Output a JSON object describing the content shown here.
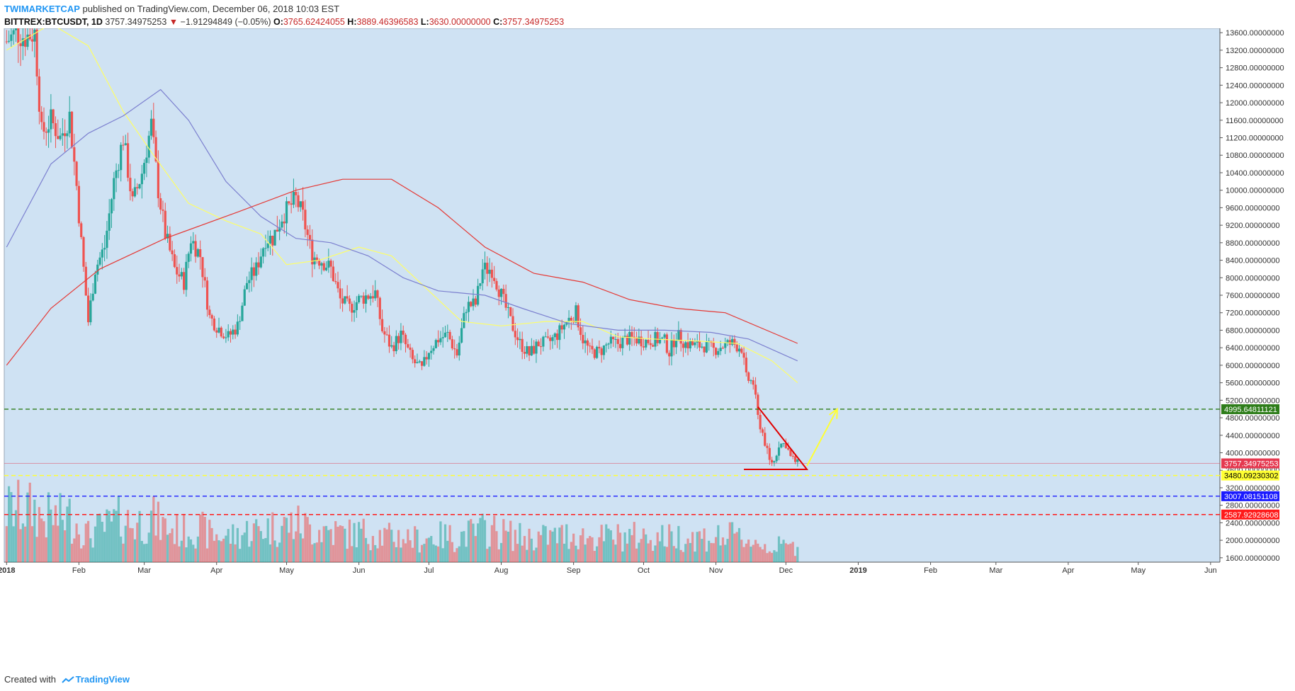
{
  "header": {
    "author": "TWIMARKETCAP",
    "published_text": "published on TradingView.com, December 06, 2018 10:03 EST",
    "symbol": "BITTREX:BTCUSDT, 1D",
    "last": "3757.34975253",
    "change_arrow": "▼",
    "change": "−1.91294849 (−0.05%)",
    "o_label": "O:",
    "o_value": "3765.62424055",
    "h_label": "H:",
    "h_value": "3889.46396583",
    "l_label": "L:",
    "l_value": "3630.00000000",
    "c_label": "C:",
    "c_value": "3757.34975253"
  },
  "footer": {
    "created_with": "Created with",
    "brand": "TradingView"
  },
  "chart_data": {
    "type": "candlestick",
    "background_color": "#cfe2f3",
    "ylim": [
      1500,
      13700
    ],
    "y_ticks": [
      "13600.00000000",
      "13200.00000000",
      "12800.00000000",
      "12400.00000000",
      "12000.00000000",
      "11600.00000000",
      "11200.00000000",
      "10800.00000000",
      "10400.00000000",
      "10000.00000000",
      "9600.00000000",
      "9200.00000000",
      "8800.00000000",
      "8400.00000000",
      "8000.00000000",
      "7600.00000000",
      "7200.00000000",
      "6800.00000000",
      "6400.00000000",
      "6000.00000000",
      "5600.00000000",
      "5200.00000000",
      "4800.00000000",
      "4400.00000000",
      "4000.00000000",
      "3600.00000000",
      "3200.00000000",
      "2800.00000000",
      "2400.00000000",
      "2000.00000000",
      "1600.00000000"
    ],
    "x_ticks": [
      {
        "label": "2018",
        "date": "2018-01-01"
      },
      {
        "label": "Feb",
        "date": "2018-02-01"
      },
      {
        "label": "Mar",
        "date": "2018-03-01"
      },
      {
        "label": "Apr",
        "date": "2018-04-01"
      },
      {
        "label": "May",
        "date": "2018-05-01"
      },
      {
        "label": "Jun",
        "date": "2018-06-01"
      },
      {
        "label": "Jul",
        "date": "2018-07-01"
      },
      {
        "label": "Aug",
        "date": "2018-08-01"
      },
      {
        "label": "Sep",
        "date": "2018-09-01"
      },
      {
        "label": "Oct",
        "date": "2018-10-01"
      },
      {
        "label": "Nov",
        "date": "2018-11-01"
      },
      {
        "label": "Dec",
        "date": "2018-12-01"
      },
      {
        "label": "2019",
        "date": "2019-01-01"
      },
      {
        "label": "Feb",
        "date": "2019-02-01"
      },
      {
        "label": "Mar",
        "date": "2019-03-01"
      },
      {
        "label": "Apr",
        "date": "2019-04-01"
      },
      {
        "label": "May",
        "date": "2019-05-01"
      },
      {
        "label": "Jun",
        "date": "2019-06-01"
      }
    ],
    "up_color": "#26a69a",
    "down_color": "#ef5350",
    "close_path": [
      [
        "2018-01-01",
        13400
      ],
      [
        "2018-01-05",
        13600
      ],
      [
        "2018-01-09",
        13500
      ],
      [
        "2018-01-13",
        13600
      ],
      [
        "2018-01-16",
        11300
      ],
      [
        "2018-01-20",
        11600
      ],
      [
        "2018-01-24",
        11200
      ],
      [
        "2018-01-28",
        11700
      ],
      [
        "2018-01-31",
        10100
      ],
      [
        "2018-02-02",
        8800
      ],
      [
        "2018-02-05",
        7000
      ],
      [
        "2018-02-08",
        8200
      ],
      [
        "2018-02-12",
        8700
      ],
      [
        "2018-02-16",
        10200
      ],
      [
        "2018-02-20",
        11200
      ],
      [
        "2018-02-24",
        9700
      ],
      [
        "2018-02-28",
        10400
      ],
      [
        "2018-03-04",
        11500
      ],
      [
        "2018-03-07",
        10000
      ],
      [
        "2018-03-10",
        9000
      ],
      [
        "2018-03-14",
        8200
      ],
      [
        "2018-03-18",
        7900
      ],
      [
        "2018-03-21",
        8900
      ],
      [
        "2018-03-25",
        8500
      ],
      [
        "2018-03-29",
        7100
      ],
      [
        "2018-04-01",
        6900
      ],
      [
        "2018-04-06",
        6650
      ],
      [
        "2018-04-10",
        6900
      ],
      [
        "2018-04-14",
        7900
      ],
      [
        "2018-04-18",
        8200
      ],
      [
        "2018-04-22",
        8900
      ],
      [
        "2018-04-25",
        8900
      ],
      [
        "2018-04-29",
        9400
      ],
      [
        "2018-05-05",
        9800
      ],
      [
        "2018-05-08",
        9400
      ],
      [
        "2018-05-12",
        8500
      ],
      [
        "2018-05-16",
        8400
      ],
      [
        "2018-05-20",
        8200
      ],
      [
        "2018-05-24",
        7500
      ],
      [
        "2018-05-28",
        7300
      ],
      [
        "2018-06-01",
        7500
      ],
      [
        "2018-06-05",
        7600
      ],
      [
        "2018-06-08",
        7650
      ],
      [
        "2018-06-11",
        6800
      ],
      [
        "2018-06-15",
        6400
      ],
      [
        "2018-06-19",
        6700
      ],
      [
        "2018-06-24",
        6100
      ],
      [
        "2018-06-28",
        5900
      ],
      [
        "2018-07-01",
        6350
      ],
      [
        "2018-07-05",
        6600
      ],
      [
        "2018-07-09",
        6700
      ],
      [
        "2018-07-13",
        6250
      ],
      [
        "2018-07-17",
        7350
      ],
      [
        "2018-07-21",
        7400
      ],
      [
        "2018-07-24",
        8200
      ],
      [
        "2018-07-28",
        8200
      ],
      [
        "2018-08-01",
        7600
      ],
      [
        "2018-08-05",
        7000
      ],
      [
        "2018-08-09",
        6500
      ],
      [
        "2018-08-13",
        6250
      ],
      [
        "2018-08-17",
        6500
      ],
      [
        "2018-08-21",
        6500
      ],
      [
        "2018-08-25",
        6700
      ],
      [
        "2018-08-29",
        7000
      ],
      [
        "2018-09-02",
        7200
      ],
      [
        "2018-09-05",
        6600
      ],
      [
        "2018-09-08",
        6300
      ],
      [
        "2018-09-12",
        6300
      ],
      [
        "2018-09-16",
        6500
      ],
      [
        "2018-09-20",
        6500
      ],
      [
        "2018-09-24",
        6600
      ],
      [
        "2018-09-28",
        6600
      ],
      [
        "2018-10-02",
        6550
      ],
      [
        "2018-10-06",
        6600
      ],
      [
        "2018-10-10",
        6550
      ],
      [
        "2018-10-12",
        6300
      ],
      [
        "2018-10-15",
        6700
      ],
      [
        "2018-10-19",
        6500
      ],
      [
        "2018-10-23",
        6450
      ],
      [
        "2018-10-27",
        6450
      ],
      [
        "2018-10-31",
        6350
      ],
      [
        "2018-11-04",
        6450
      ],
      [
        "2018-11-08",
        6500
      ],
      [
        "2018-11-12",
        6400
      ],
      [
        "2018-11-14",
        5700
      ],
      [
        "2018-11-17",
        5600
      ],
      [
        "2018-11-19",
        4800
      ],
      [
        "2018-11-21",
        4450
      ],
      [
        "2018-11-24",
        3800
      ],
      [
        "2018-11-26",
        3800
      ],
      [
        "2018-11-28",
        4200
      ],
      [
        "2018-12-01",
        4200
      ],
      [
        "2018-12-03",
        3900
      ],
      [
        "2018-12-06",
        3757
      ]
    ],
    "moving_averages": [
      {
        "color": "#ffff66",
        "points": [
          [
            "2018-01-01",
            13200
          ],
          [
            "2018-01-20",
            13800
          ],
          [
            "2018-02-05",
            13300
          ],
          [
            "2018-02-20",
            11800
          ],
          [
            "2018-03-05",
            10800
          ],
          [
            "2018-03-20",
            9700
          ],
          [
            "2018-04-05",
            9300
          ],
          [
            "2018-04-20",
            9000
          ],
          [
            "2018-05-01",
            8300
          ],
          [
            "2018-05-15",
            8400
          ],
          [
            "2018-06-01",
            8700
          ],
          [
            "2018-06-15",
            8500
          ],
          [
            "2018-07-01",
            7700
          ],
          [
            "2018-07-15",
            7000
          ],
          [
            "2018-08-01",
            6900
          ],
          [
            "2018-08-20",
            7000
          ],
          [
            "2018-09-05",
            7000
          ],
          [
            "2018-09-20",
            6650
          ],
          [
            "2018-10-05",
            6600
          ],
          [
            "2018-10-25",
            6550
          ],
          [
            "2018-11-10",
            6500
          ],
          [
            "2018-11-25",
            6100
          ],
          [
            "2018-12-06",
            5600
          ]
        ]
      },
      {
        "color": "#7b7fcf",
        "points": [
          [
            "2018-01-01",
            8700
          ],
          [
            "2018-01-20",
            10600
          ],
          [
            "2018-02-05",
            11300
          ],
          [
            "2018-02-20",
            11700
          ],
          [
            "2018-03-08",
            12300
          ],
          [
            "2018-03-20",
            11600
          ],
          [
            "2018-04-05",
            10200
          ],
          [
            "2018-04-20",
            9400
          ],
          [
            "2018-05-05",
            8900
          ],
          [
            "2018-05-20",
            8800
          ],
          [
            "2018-06-05",
            8500
          ],
          [
            "2018-06-20",
            8000
          ],
          [
            "2018-07-05",
            7700
          ],
          [
            "2018-07-25",
            7600
          ],
          [
            "2018-08-10",
            7300
          ],
          [
            "2018-08-30",
            6950
          ],
          [
            "2018-09-20",
            6800
          ],
          [
            "2018-10-10",
            6800
          ],
          [
            "2018-10-30",
            6750
          ],
          [
            "2018-11-15",
            6600
          ],
          [
            "2018-12-06",
            6100
          ]
        ]
      },
      {
        "color": "#e53935",
        "points": [
          [
            "2018-01-01",
            6000
          ],
          [
            "2018-01-20",
            7300
          ],
          [
            "2018-02-10",
            8200
          ],
          [
            "2018-03-10",
            8900
          ],
          [
            "2018-04-10",
            9500
          ],
          [
            "2018-05-05",
            10000
          ],
          [
            "2018-05-25",
            10250
          ],
          [
            "2018-06-15",
            10250
          ],
          [
            "2018-07-05",
            9600
          ],
          [
            "2018-07-25",
            8700
          ],
          [
            "2018-08-15",
            8100
          ],
          [
            "2018-09-05",
            7900
          ],
          [
            "2018-09-25",
            7500
          ],
          [
            "2018-10-15",
            7300
          ],
          [
            "2018-11-05",
            7200
          ],
          [
            "2018-12-06",
            6500
          ]
        ]
      }
    ],
    "horizontal_levels": [
      {
        "value": 4995.64811121,
        "label": "4995.64811121",
        "color": "#2e7d1a",
        "text_color": "#ffffff",
        "style": "dashed"
      },
      {
        "value": 3757.34975253,
        "label": "3757.34975253",
        "color": "#e53950",
        "text_color": "#ffffff",
        "style": "thin"
      },
      {
        "value": 3480.09230302,
        "label": "3480.09230302",
        "color": "#ffff33",
        "text_color": "#000000",
        "style": "dashed"
      },
      {
        "value": 3007.08151108,
        "label": "3007.08151108",
        "color": "#1a1aff",
        "text_color": "#ffffff",
        "style": "dashed"
      },
      {
        "value": 2587.92928608,
        "label": "2587.92928608",
        "color": "#ff1a1a",
        "text_color": "#ffffff",
        "style": "dashed"
      }
    ],
    "drawings": {
      "triangle": {
        "color": "#e00000",
        "points": [
          [
            "2018-11-19",
            5050
          ],
          [
            "2018-12-10",
            3620
          ],
          [
            "2017-11-11",
            3620
          ],
          [
            "2018-11-19",
            3620
          ]
        ]
      },
      "arrow": {
        "color": "#ffff33",
        "from": [
          "2018-12-10",
          3700
        ],
        "to": [
          "2018-12-23",
          5000
        ]
      }
    }
  }
}
